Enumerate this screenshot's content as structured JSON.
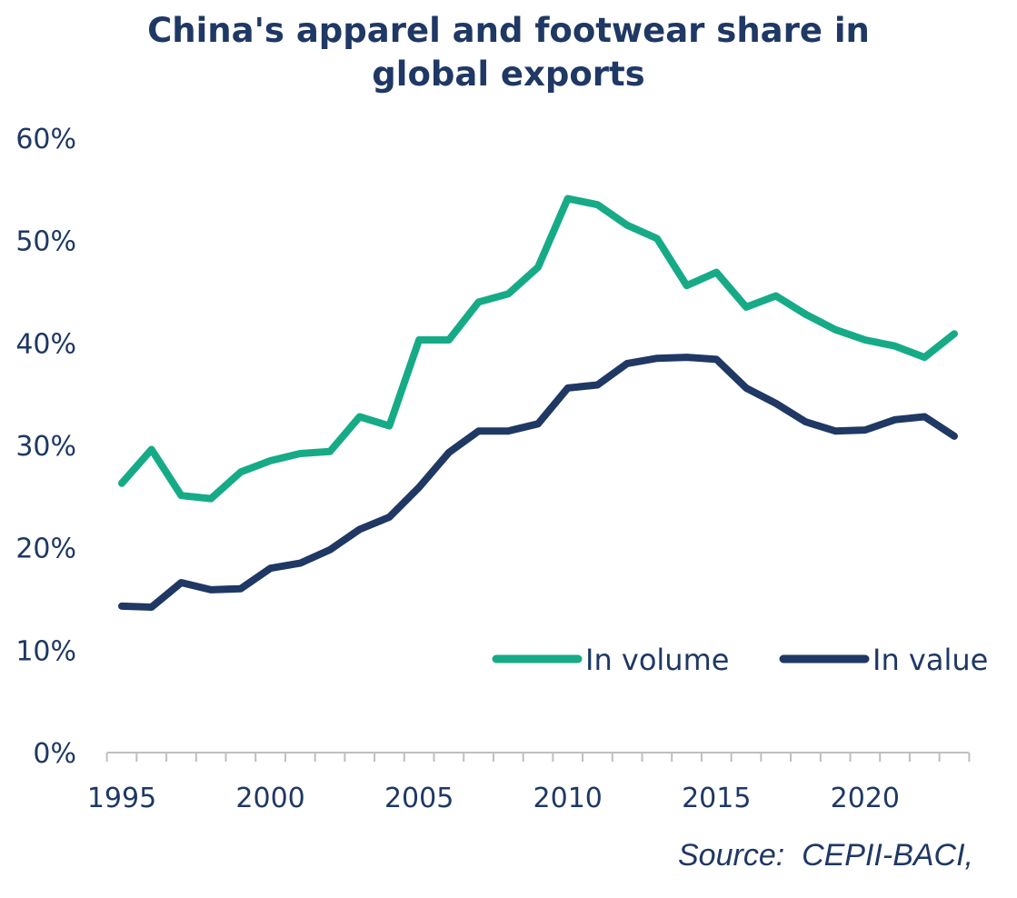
{
  "title_lines": [
    "China's apparel and footwear share in",
    "global exports"
  ],
  "source": "Source:  CEPII-BACI,",
  "colors": {
    "volume": "#16ab86",
    "value": "#1f3864",
    "text": "#1f3864",
    "axis": "#bfbfbf"
  },
  "chart_data": {
    "type": "line",
    "title": "China's apparel and footwear share in global exports",
    "xlabel": "",
    "ylabel": "",
    "x": [
      1995,
      1996,
      1997,
      1998,
      1999,
      2000,
      2001,
      2002,
      2003,
      2004,
      2005,
      2006,
      2007,
      2008,
      2009,
      2010,
      2011,
      2012,
      2013,
      2014,
      2015,
      2016,
      2017,
      2018,
      2019,
      2020,
      2021,
      2022,
      2023
    ],
    "xticks": [
      1995,
      2000,
      2005,
      2010,
      2015,
      2020
    ],
    "xtick_labels": [
      "1995",
      "2000",
      "2005",
      "2010",
      "2015",
      "2020"
    ],
    "xlim": [
      1995,
      2023
    ],
    "ylim": [
      0,
      60
    ],
    "yticks": [
      0,
      10,
      20,
      30,
      40,
      50,
      60
    ],
    "ytick_labels": [
      "0%",
      "10%",
      "20%",
      "30%",
      "40%",
      "50%",
      "60%"
    ],
    "grid": false,
    "legend_position": "bottom-right",
    "series": [
      {
        "name": "In volume",
        "color": "#16ab86",
        "values": [
          26.3,
          29.6,
          25.1,
          24.8,
          27.4,
          28.5,
          29.2,
          29.4,
          32.8,
          31.9,
          40.3,
          40.3,
          44.0,
          44.8,
          47.4,
          54.1,
          53.5,
          51.5,
          50.2,
          45.6,
          46.9,
          43.5,
          44.6,
          42.8,
          41.3,
          40.3,
          39.7,
          38.6,
          40.9
        ],
        "line_width": 8
      },
      {
        "name": "In value",
        "color": "#1f3864",
        "values": [
          14.3,
          14.2,
          16.6,
          15.9,
          16.0,
          18.0,
          18.5,
          19.8,
          21.8,
          23.0,
          25.9,
          29.3,
          31.4,
          31.4,
          32.1,
          35.6,
          35.9,
          38.0,
          38.5,
          38.6,
          38.4,
          35.6,
          34.1,
          32.3,
          31.4,
          31.5,
          32.5,
          32.8,
          30.9
        ],
        "line_width": 8
      }
    ]
  }
}
